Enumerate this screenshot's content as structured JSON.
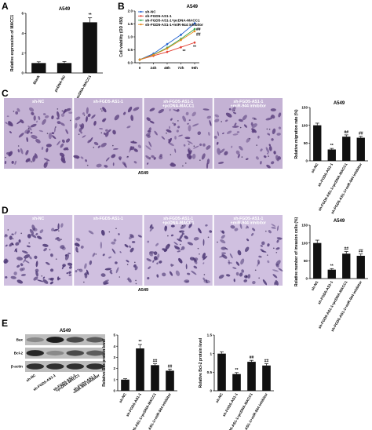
{
  "panel_letters": [
    "A",
    "B",
    "C",
    "D",
    "E"
  ],
  "micro_c": {
    "captions": [
      "sh-NC",
      "sh-FGD5-AS1-1",
      "sh-FGD5-AS1-1\n+pcDNA-MACC1",
      "sh-FGD5-AS1-1\n+miR-944 inhibitor"
    ],
    "bottom_label": "A549",
    "colors": {
      "bg": "#c4b2d4",
      "stain": "#5a3f7d"
    }
  },
  "micro_d": {
    "captions": [
      "sh-NC",
      "sh-FGD5-AS1-1",
      "sh-FGD5-AS1-1\n+pcDNA-MACC1",
      "sh-FGD5-AS1-1\n+miR-944 inhibitor"
    ],
    "bottom_label": "A549",
    "colors": {
      "bg": "#d0c0e0",
      "stain": "#4e3a76"
    }
  },
  "blot": {
    "title": "A549",
    "rows": [
      "Bax",
      "Bcl-2",
      "β-actin"
    ],
    "lanes": [
      "sh-NC",
      "sh-FGD5-AS1-1",
      "sh-FGD5-AS1-1\n+pcDNA-MACC1",
      "sh-FGD5-AS1-1\n+miR-944 inhibitor"
    ]
  },
  "chart_data": [
    {
      "id": "A",
      "type": "bar",
      "title": "A549",
      "ylabel": "Relative expression of MACC1",
      "categories": [
        "Blank",
        "pcDNA-NC",
        "pcDNA-MACC1"
      ],
      "values": [
        1.0,
        1.0,
        5.1
      ],
      "errors": [
        0.12,
        0.15,
        0.45
      ],
      "annotations": [
        "",
        "",
        "**"
      ],
      "ylim": [
        0,
        6
      ],
      "yticks": [
        0,
        2,
        4,
        6
      ]
    },
    {
      "id": "B",
      "type": "line",
      "title": "A549",
      "ylabel": "Cell viability (OD 450)",
      "x": [
        "0",
        "24h",
        "48h",
        "72h",
        "96h"
      ],
      "ylim": [
        0.0,
        2.0
      ],
      "yticks": [
        0.0,
        0.5,
        1.0,
        1.5,
        2.0
      ],
      "series": [
        {
          "name": "sh-NC",
          "values": [
            0.12,
            0.35,
            0.72,
            1.08,
            1.52
          ],
          "color": "#1f5fcf"
        },
        {
          "name": "sh-FGD5-AS1-1",
          "values": [
            0.12,
            0.27,
            0.42,
            0.6,
            0.78
          ],
          "color": "#e23b2e"
        },
        {
          "name": "sh-FGD5-AS1-1+pcDNA-MACC1",
          "values": [
            0.12,
            0.31,
            0.58,
            0.92,
            1.3
          ],
          "color": "#2ea84a"
        },
        {
          "name": "sh-FGD5-AS1-1+miR-944 inhibitor",
          "values": [
            0.12,
            0.3,
            0.55,
            0.88,
            1.22
          ],
          "color": "#e78a1e"
        }
      ],
      "annotations": [
        {
          "x": "72h",
          "text": "**"
        },
        {
          "x": "96h",
          "text": "**"
        },
        {
          "x": "96h",
          "text": "##"
        },
        {
          "x": "96h",
          "text": "##"
        }
      ]
    },
    {
      "id": "C",
      "type": "bar",
      "title": "A549",
      "ylabel": "Relative migration rate (%)",
      "categories": [
        "sh-NC",
        "sh-FGD5-AS1-1",
        "sh-FGD5-AS1-1+pcDNA-MACC1",
        "sh-FGD5-AS1-1+miR-944 inhibitor"
      ],
      "values": [
        100,
        32,
        68,
        65
      ],
      "errors": [
        6,
        3,
        5,
        4
      ],
      "annotations": [
        "",
        "**",
        "##",
        "##"
      ],
      "ylim": [
        0,
        150
      ],
      "yticks": [
        0,
        50,
        100,
        150
      ]
    },
    {
      "id": "D",
      "type": "bar",
      "title": "A549",
      "ylabel": "Relative number of invasion cells (%)",
      "categories": [
        "sh-NC",
        "sh-FGD5-AS1-1",
        "sh-FGD5-AS1-1+pcDNA-MACC1",
        "sh-FGD5-AS1-1+miR-944 inhibitor"
      ],
      "values": [
        100,
        25,
        70,
        64
      ],
      "errors": [
        8,
        3,
        6,
        5
      ],
      "annotations": [
        "",
        "**",
        "##",
        "##"
      ],
      "ylim": [
        0,
        150
      ],
      "yticks": [
        0,
        50,
        100,
        150
      ]
    },
    {
      "id": "E1",
      "type": "bar",
      "title": "",
      "ylabel": "Relative Bax protein level",
      "categories": [
        "sh-NC",
        "sh-FGD5-AS1-1",
        "sh-FGD5-AS1-1+pcDNA-MACC1",
        "sh-FGD5-AS1-1+miR-944 inhibitor"
      ],
      "values": [
        1.0,
        3.8,
        2.3,
        1.8
      ],
      "errors": [
        0.08,
        0.35,
        0.12,
        0.15
      ],
      "annotations": [
        "",
        "**",
        "##",
        "##"
      ],
      "ylim": [
        0,
        5
      ],
      "yticks": [
        0,
        1,
        2,
        3,
        4,
        5
      ]
    },
    {
      "id": "E2",
      "type": "bar",
      "title": "",
      "ylabel": "Relative Bcl-2 protein level",
      "categories": [
        "sh-NC",
        "sh-FGD5-AS1-1",
        "sh-FGD5-AS1-1+pcDNA-MACC1",
        "sh-FGD5-AS1-1+miR-944 inhibitor"
      ],
      "values": [
        1.0,
        0.45,
        0.78,
        0.68
      ],
      "errors": [
        0.05,
        0.04,
        0.04,
        0.05
      ],
      "annotations": [
        "",
        "**",
        "##",
        "##"
      ],
      "ylim": [
        0,
        1.5
      ],
      "yticks": [
        0.0,
        0.5,
        1.0,
        1.5
      ]
    }
  ]
}
